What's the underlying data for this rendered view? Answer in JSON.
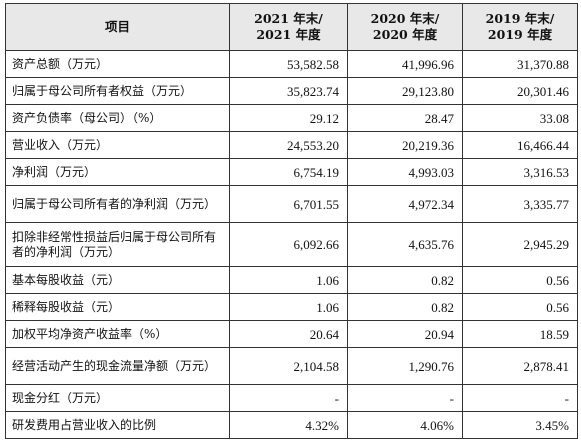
{
  "header": {
    "item": "项目",
    "col2021": [
      "2021 年末/",
      "2021 年度"
    ],
    "col2020": [
      "2020 年末/",
      "2020 年度"
    ],
    "col2019": [
      "2019 年末/",
      "2019 年度"
    ]
  },
  "rows": [
    {
      "label": "资产总额（万元）",
      "v2021": "53,582.58",
      "v2020": "41,996.96",
      "v2019": "31,370.88"
    },
    {
      "label": "归属于母公司所有者权益（万元）",
      "v2021": "35,823.74",
      "v2020": "29,123.80",
      "v2019": "20,301.46"
    },
    {
      "label": "资产负债率（母公司）（%）",
      "v2021": "29.12",
      "v2020": "28.47",
      "v2019": "33.08"
    },
    {
      "label": "营业收入（万元）",
      "v2021": "24,553.20",
      "v2020": "20,219.36",
      "v2019": "16,466.44"
    },
    {
      "label": "净利润（万元）",
      "v2021": "6,754.19",
      "v2020": "4,993.03",
      "v2019": "3,316.53"
    },
    {
      "label": "归属于母公司所有者的净利润（万元）",
      "v2021": "6,701.55",
      "v2020": "4,972.34",
      "v2019": "3,335.77"
    },
    {
      "label": "扣除非经常性损益后归属于母公司所有者的净利润（万元）",
      "v2021": "6,092.66",
      "v2020": "4,635.76",
      "v2019": "2,945.29"
    },
    {
      "label": "基本每股收益（元）",
      "v2021": "1.06",
      "v2020": "0.82",
      "v2019": "0.56"
    },
    {
      "label": "稀释每股收益（元）",
      "v2021": "1.06",
      "v2020": "0.82",
      "v2019": "0.56"
    },
    {
      "label": "加权平均净资产收益率（%）",
      "v2021": "20.64",
      "v2020": "20.94",
      "v2019": "18.59"
    },
    {
      "label": "经营活动产生的现金流量净额（万元）",
      "v2021": "2,104.58",
      "v2020": "1,290.76",
      "v2019": "2,878.41"
    },
    {
      "label": "现金分红（万元）",
      "v2021": "-",
      "v2020": "-",
      "v2019": "-"
    },
    {
      "label": "研发费用占营业收入的比例",
      "v2021": "4.32%",
      "v2020": "4.06%",
      "v2019": "3.45%"
    }
  ]
}
